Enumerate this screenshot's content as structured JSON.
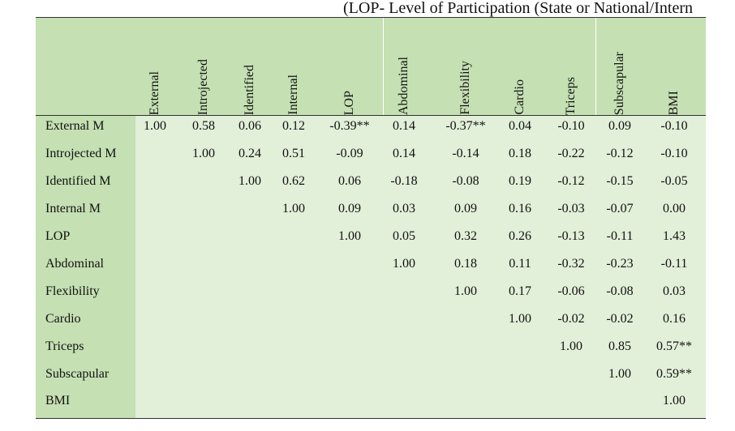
{
  "caption": "(LOP- Level of Participation (State or National/Intern",
  "table": {
    "columns": [
      "External",
      "Introjected",
      "Identified",
      "Internal",
      "LOP",
      "Abdominal",
      "Flexibility",
      "Cardio",
      "Triceps",
      "Subscapular",
      "BMI"
    ],
    "rows": [
      {
        "label": "External M",
        "values": [
          "1.00",
          "0.58",
          "0.06",
          "0.12",
          "-0.39**",
          "0.14",
          "-0.37**",
          "0.04",
          "-0.10",
          "0.09",
          "-0.10"
        ]
      },
      {
        "label": "Introjected M",
        "values": [
          "",
          "1.00",
          "0.24",
          "0.51",
          "-0.09",
          "0.14",
          "-0.14",
          "0.18",
          "-0.22",
          "-0.12",
          "-0.10"
        ]
      },
      {
        "label": "Identified M",
        "values": [
          "",
          "",
          "1.00",
          "0.62",
          "0.06",
          "-0.18",
          "-0.08",
          "0.19",
          "-0.12",
          "-0.15",
          "-0.05"
        ]
      },
      {
        "label": "Internal M",
        "values": [
          "",
          "",
          "",
          "1.00",
          "0.09",
          "0.03",
          "0.09",
          "0.16",
          "-0.03",
          "-0.07",
          "0.00"
        ]
      },
      {
        "label": "LOP",
        "values": [
          "",
          "",
          "",
          "",
          "1.00",
          "0.05",
          "0.32",
          "0.26",
          "-0.13",
          "-0.11",
          "1.43"
        ]
      },
      {
        "label": "Abdominal",
        "values": [
          "",
          "",
          "",
          "",
          "",
          "1.00",
          "0.18",
          "0.11",
          "-0.32",
          "-0.23",
          "-0.11"
        ]
      },
      {
        "label": "Flexibility",
        "values": [
          "",
          "",
          "",
          "",
          "",
          "",
          "1.00",
          "0.17",
          "-0.06",
          "-0.08",
          "0.03"
        ]
      },
      {
        "label": "Cardio",
        "values": [
          "",
          "",
          "",
          "",
          "",
          "",
          "",
          "1.00",
          "-0.02",
          "-0.02",
          "0.16"
        ]
      },
      {
        "label": "Triceps",
        "values": [
          "",
          "",
          "",
          "",
          "",
          "",
          "",
          "",
          "1.00",
          "0.85",
          "0.57**"
        ]
      },
      {
        "label": "Subscapular",
        "values": [
          "",
          "",
          "",
          "",
          "",
          "",
          "",
          "",
          "",
          "1.00",
          "0.59**"
        ]
      },
      {
        "label": "BMI",
        "values": [
          "",
          "",
          "",
          "",
          "",
          "",
          "",
          "",
          "",
          "",
          "1.00"
        ]
      }
    ]
  }
}
